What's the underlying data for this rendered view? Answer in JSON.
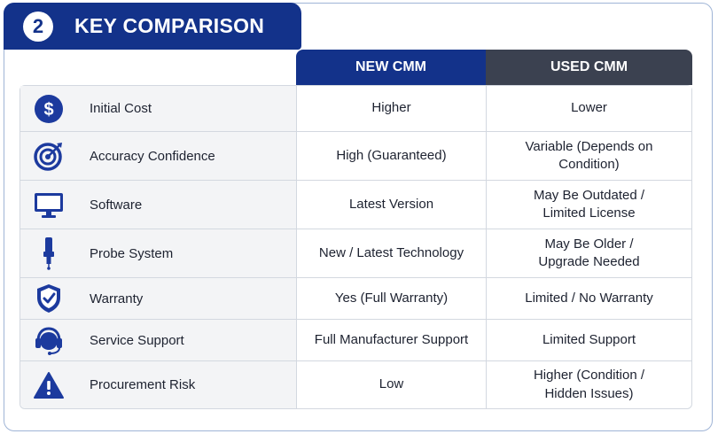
{
  "header": {
    "step_number": "2",
    "title": "KEY COMPARISON"
  },
  "columns": {
    "new": "NEW CMM",
    "used": "USED CMM"
  },
  "colors": {
    "navy": "#13328a",
    "charcoal": "#3b4150",
    "icon_blue": "#1c3a9e"
  },
  "rows": [
    {
      "icon": "dollar-icon",
      "feature": "Initial Cost",
      "new": "Higher",
      "used": "Lower"
    },
    {
      "icon": "target-icon",
      "feature": "Accuracy Confidence",
      "new": "High (Guaranteed)",
      "used_1": "Variable (Depends on",
      "used_2": "Condition)"
    },
    {
      "icon": "monitor-icon",
      "feature": "Software",
      "new": "Latest Version",
      "used_1": "May Be Outdated /",
      "used_2": "Limited License"
    },
    {
      "icon": "probe-icon",
      "feature": "Probe System",
      "new": "New / Latest Technology",
      "used_1": "May Be Older /",
      "used_2": "Upgrade Needed"
    },
    {
      "icon": "shield-icon",
      "feature": "Warranty",
      "new": "Yes (Full Warranty)",
      "used": "Limited / No Warranty"
    },
    {
      "icon": "headset-icon",
      "feature": "Service Support",
      "new": "Full Manufacturer Support",
      "used": "Limited Support"
    },
    {
      "icon": "warning-icon",
      "feature": "Procurement Risk",
      "new": "Low",
      "used_1": "Higher (Condition /",
      "used_2": "Hidden Issues)"
    }
  ]
}
